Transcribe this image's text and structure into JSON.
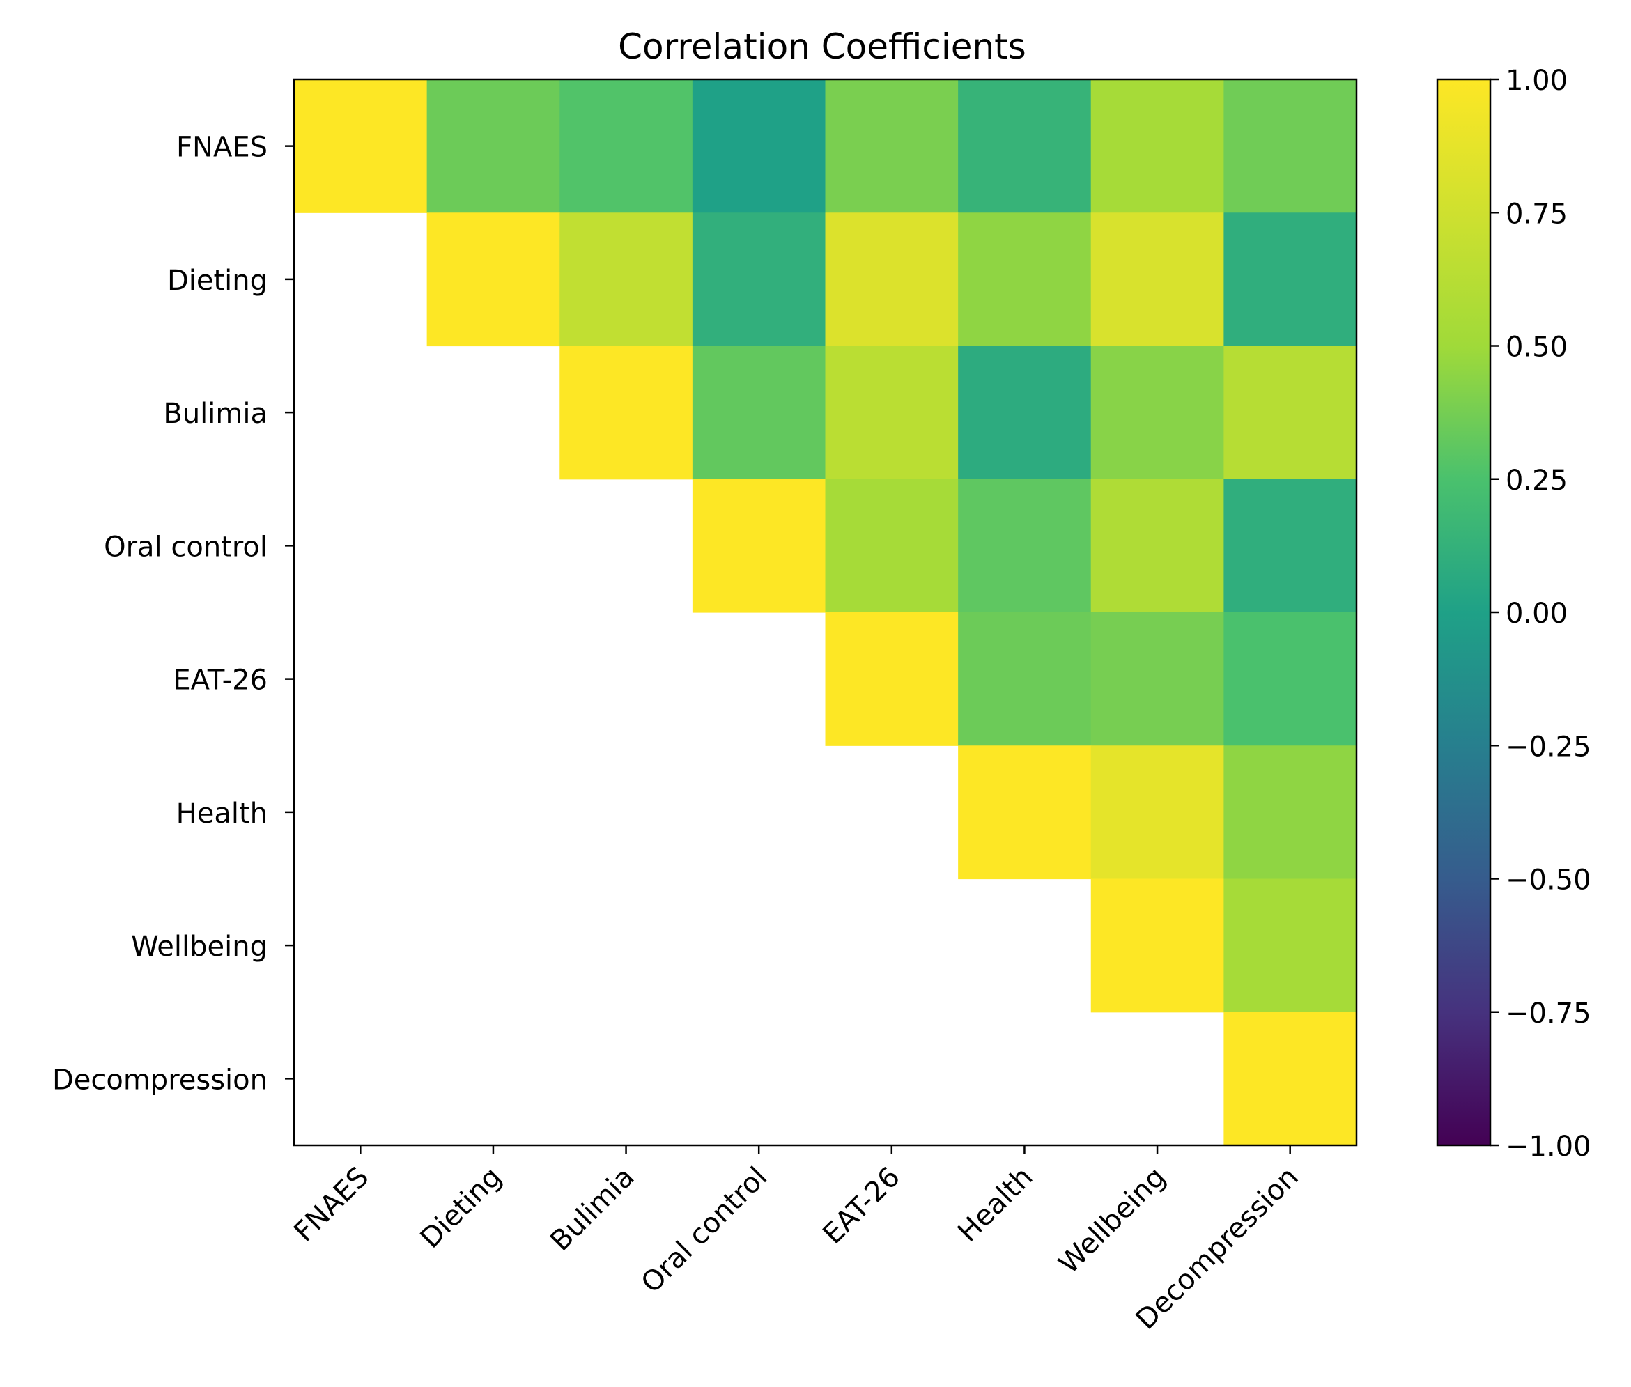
{
  "chart_data": {
    "type": "heatmap",
    "title": "Correlation Coefficients",
    "variables": [
      "FNAES",
      "Dieting",
      "Bulimia",
      "Oral control",
      "EAT-26",
      "Health",
      "Wellbeing",
      "Decompression"
    ],
    "matrix": [
      [
        1.0,
        0.35,
        0.27,
        0.0,
        0.39,
        0.14,
        0.53,
        0.36
      ],
      [
        null,
        1.0,
        0.68,
        0.11,
        0.82,
        0.45,
        0.8,
        0.1
      ],
      [
        null,
        null,
        1.0,
        0.32,
        0.64,
        0.08,
        0.43,
        0.62
      ],
      [
        null,
        null,
        null,
        1.0,
        0.53,
        0.31,
        0.58,
        0.1
      ],
      [
        null,
        null,
        null,
        null,
        1.0,
        0.35,
        0.38,
        0.25
      ],
      [
        null,
        null,
        null,
        null,
        null,
        1.0,
        0.87,
        0.45
      ],
      [
        null,
        null,
        null,
        null,
        null,
        null,
        1.0,
        0.53
      ],
      [
        null,
        null,
        null,
        null,
        null,
        null,
        null,
        1.0
      ]
    ],
    "colorbar": {
      "colormap": "viridis",
      "vmin": -1.0,
      "vmax": 1.0,
      "ticks": [
        1.0,
        0.75,
        0.5,
        0.25,
        0.0,
        -0.25,
        -0.5,
        -0.75,
        -1.0
      ],
      "tick_labels": [
        "1.00",
        "0.75",
        "0.50",
        "0.25",
        "0.00",
        "−0.25",
        "−0.50",
        "−0.75",
        "−1.00"
      ]
    },
    "xlabel": "",
    "ylabel": "",
    "masked": "lower-triangle"
  }
}
